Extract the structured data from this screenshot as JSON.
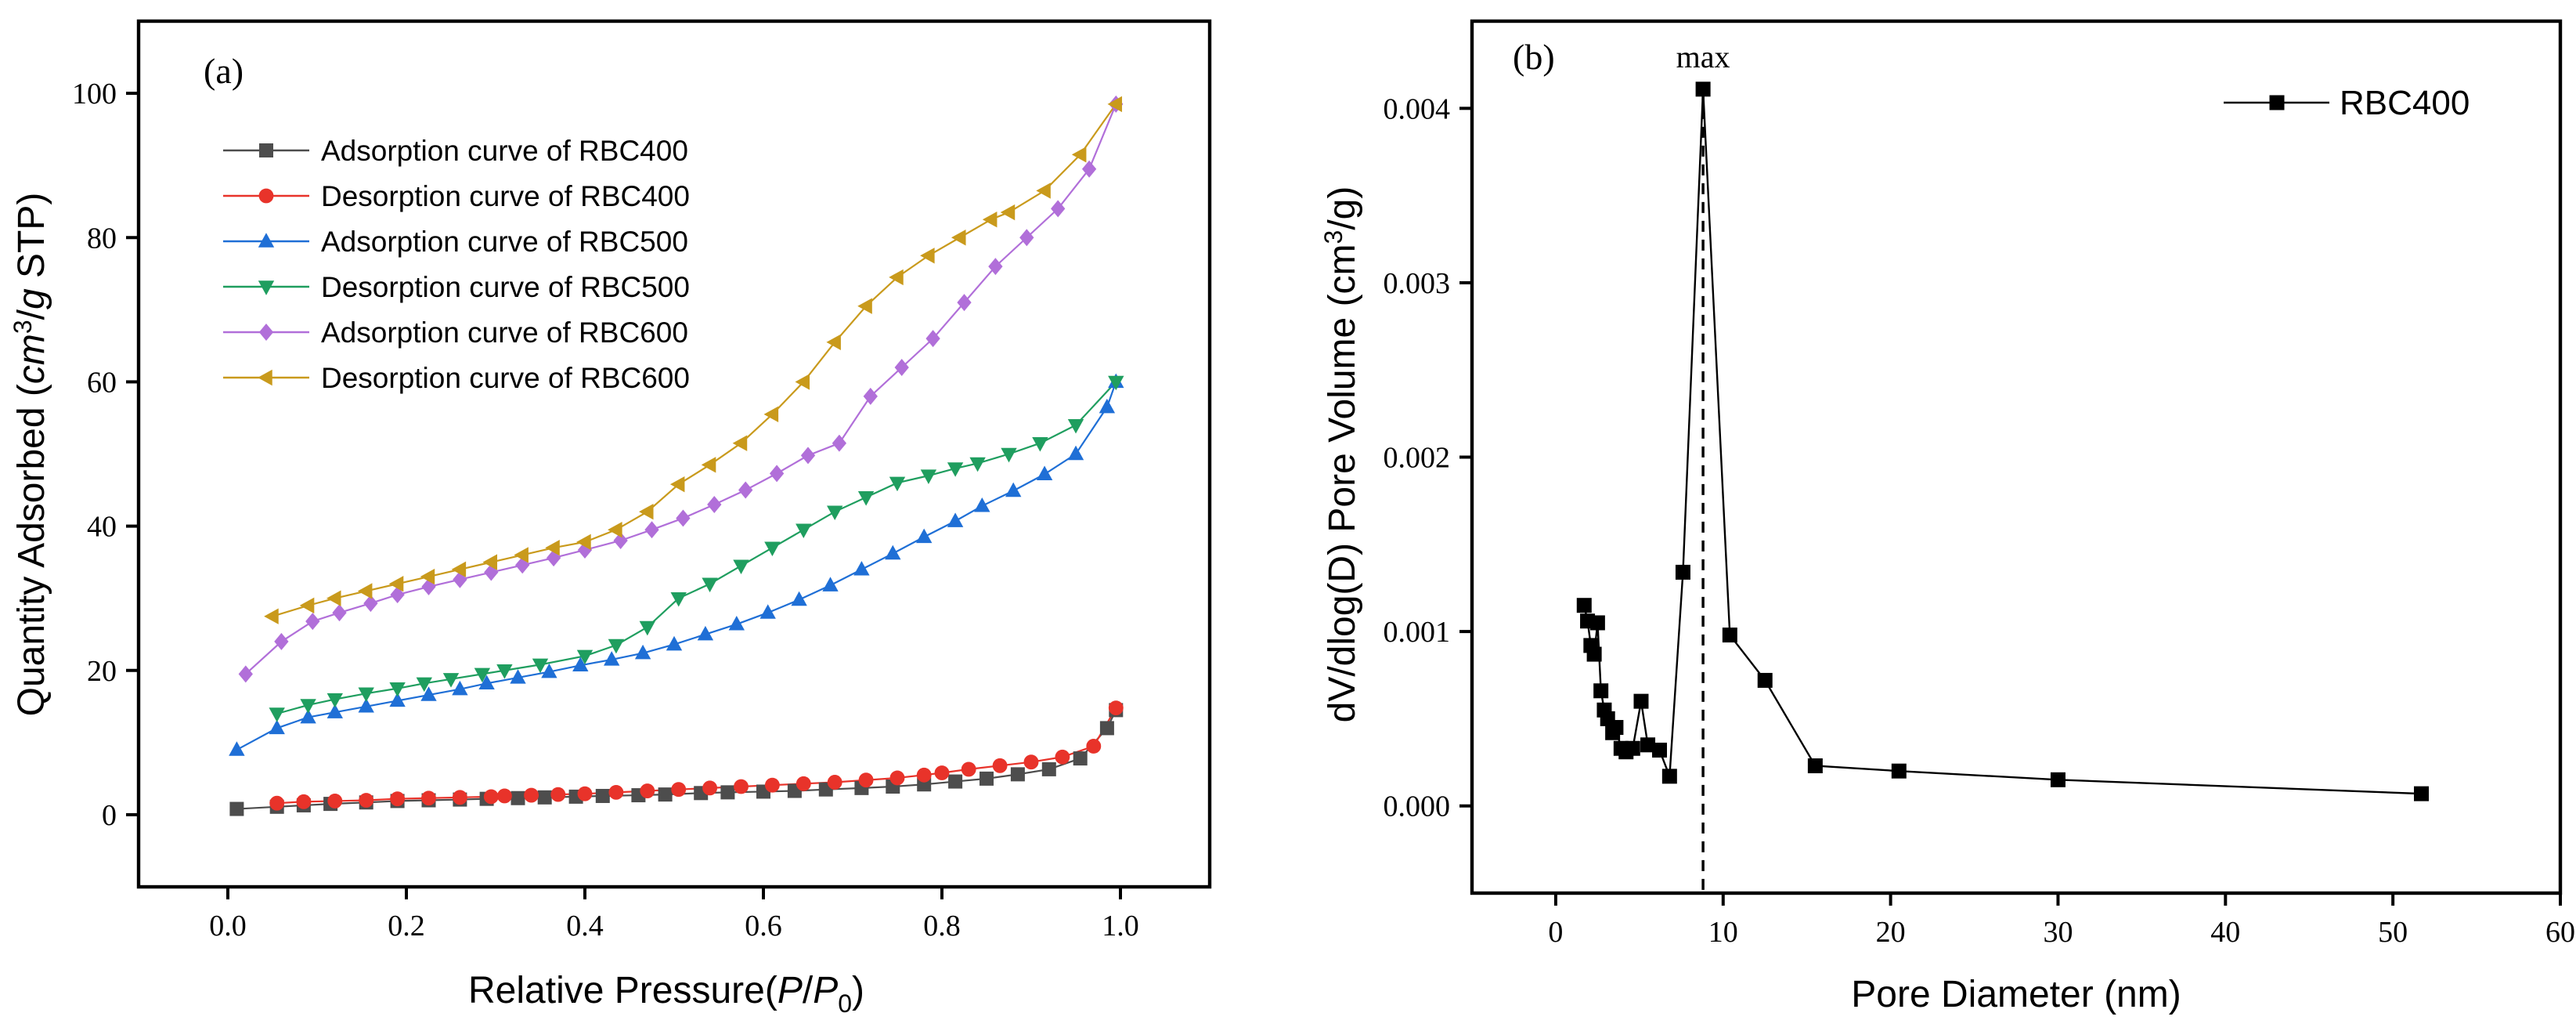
{
  "chart_data": [
    {
      "type": "line",
      "panel_label": "(a)",
      "xlabel_parts": [
        "Relative Pressure(",
        "P",
        "/",
        "P",
        "0",
        ")"
      ],
      "ylabel_parts": [
        "Quantity Adsorbed (",
        "cm",
        "3",
        "/",
        "g",
        " STP)"
      ],
      "xlim": [
        -0.1,
        1.1
      ],
      "ylim": [
        -10,
        110
      ],
      "xticks": [
        0.0,
        0.2,
        0.4,
        0.6,
        0.8,
        1.0
      ],
      "xtick_labels": [
        "0.0",
        "0.2",
        "0.4",
        "0.6",
        "0.8",
        "1.0"
      ],
      "yticks": [
        0,
        20,
        40,
        60,
        80,
        100
      ],
      "ytick_labels": [
        "0",
        "20",
        "40",
        "60",
        "80",
        "100"
      ],
      "legend_position": "upper-left",
      "series": [
        {
          "name": "Adsorption curve of RBC400",
          "color": "#4d4d4d",
          "marker": "square",
          "x": [
            0.01,
            0.055,
            0.085,
            0.115,
            0.155,
            0.19,
            0.225,
            0.26,
            0.29,
            0.325,
            0.355,
            0.39,
            0.42,
            0.46,
            0.49,
            0.53,
            0.56,
            0.6,
            0.635,
            0.67,
            0.71,
            0.745,
            0.78,
            0.815,
            0.85,
            0.885,
            0.92,
            0.955,
            0.985,
            0.995
          ],
          "y": [
            0.8,
            1.1,
            1.3,
            1.5,
            1.7,
            1.9,
            2.0,
            2.1,
            2.2,
            2.3,
            2.4,
            2.5,
            2.6,
            2.7,
            2.8,
            3.0,
            3.1,
            3.2,
            3.3,
            3.5,
            3.7,
            3.9,
            4.2,
            4.6,
            5.0,
            5.6,
            6.3,
            7.8,
            12.0,
            14.5
          ]
        },
        {
          "name": "Desorption curve of RBC400",
          "color": "#e8332a",
          "marker": "circle",
          "x": [
            0.995,
            0.97,
            0.935,
            0.9,
            0.865,
            0.83,
            0.8,
            0.78,
            0.75,
            0.715,
            0.68,
            0.645,
            0.61,
            0.575,
            0.54,
            0.505,
            0.47,
            0.435,
            0.4,
            0.37,
            0.34,
            0.31,
            0.295,
            0.26,
            0.225,
            0.19,
            0.155,
            0.12,
            0.085,
            0.055
          ],
          "y": [
            14.8,
            9.5,
            8.0,
            7.3,
            6.8,
            6.3,
            5.8,
            5.5,
            5.1,
            4.8,
            4.5,
            4.3,
            4.1,
            3.9,
            3.7,
            3.5,
            3.3,
            3.1,
            2.9,
            2.8,
            2.7,
            2.6,
            2.5,
            2.4,
            2.3,
            2.2,
            2.0,
            1.9,
            1.8,
            1.6
          ]
        },
        {
          "name": "Adsorption curve of RBC500",
          "color": "#1f6fd6",
          "marker": "triangle-up",
          "x": [
            0.01,
            0.055,
            0.09,
            0.12,
            0.155,
            0.19,
            0.225,
            0.26,
            0.29,
            0.325,
            0.36,
            0.395,
            0.43,
            0.465,
            0.5,
            0.535,
            0.57,
            0.605,
            0.64,
            0.675,
            0.71,
            0.745,
            0.78,
            0.815,
            0.845,
            0.88,
            0.915,
            0.95,
            0.985,
            0.995
          ],
          "y": [
            9.0,
            12.0,
            13.5,
            14.2,
            15.0,
            15.8,
            16.6,
            17.4,
            18.2,
            19.0,
            19.8,
            20.7,
            21.5,
            22.4,
            23.6,
            25.0,
            26.4,
            28.0,
            29.8,
            31.8,
            34.0,
            36.2,
            38.5,
            40.7,
            42.8,
            44.9,
            47.2,
            50.0,
            56.5,
            60.0
          ]
        },
        {
          "name": "Desorption curve of RBC500",
          "color": "#1f9e5f",
          "marker": "triangle-down",
          "x": [
            0.995,
            0.95,
            0.91,
            0.875,
            0.84,
            0.815,
            0.785,
            0.75,
            0.715,
            0.68,
            0.645,
            0.61,
            0.575,
            0.54,
            0.505,
            0.47,
            0.435,
            0.4,
            0.35,
            0.31,
            0.285,
            0.25,
            0.22,
            0.19,
            0.155,
            0.12,
            0.09,
            0.055
          ],
          "y": [
            60.0,
            54.0,
            51.5,
            50.0,
            48.7,
            48.0,
            47.0,
            46.0,
            44.0,
            42.0,
            39.5,
            37.0,
            34.5,
            32.0,
            30.0,
            26.0,
            23.5,
            22.0,
            20.8,
            20.0,
            19.5,
            18.8,
            18.2,
            17.5,
            16.8,
            16.0,
            15.2,
            14.0
          ]
        },
        {
          "name": "Adsorption curve of RBC600",
          "color": "#b16fd9",
          "marker": "diamond",
          "x": [
            0.02,
            0.06,
            0.095,
            0.125,
            0.16,
            0.19,
            0.225,
            0.26,
            0.295,
            0.33,
            0.365,
            0.4,
            0.44,
            0.475,
            0.51,
            0.545,
            0.58,
            0.615,
            0.65,
            0.685,
            0.72,
            0.755,
            0.79,
            0.825,
            0.86,
            0.895,
            0.93,
            0.965,
            0.995
          ],
          "y": [
            19.5,
            24.0,
            26.8,
            28.0,
            29.3,
            30.5,
            31.6,
            32.6,
            33.6,
            34.6,
            35.6,
            36.7,
            38.0,
            39.5,
            41.1,
            43.0,
            45.0,
            47.3,
            49.8,
            51.5,
            58.0,
            62.0,
            66.0,
            71.0,
            76.0,
            80.0,
            84.0,
            89.5,
            98.5
          ]
        },
        {
          "name": "Desorption curve of RBC600",
          "color": "#c99a1c",
          "marker": "triangle-left",
          "x": [
            0.995,
            0.955,
            0.915,
            0.875,
            0.855,
            0.82,
            0.785,
            0.75,
            0.715,
            0.68,
            0.645,
            0.61,
            0.575,
            0.54,
            0.505,
            0.47,
            0.435,
            0.4,
            0.365,
            0.33,
            0.295,
            0.26,
            0.225,
            0.19,
            0.155,
            0.12,
            0.09,
            0.05
          ],
          "y": [
            98.5,
            91.5,
            86.5,
            83.5,
            82.5,
            80.0,
            77.5,
            74.5,
            70.5,
            65.5,
            60.0,
            55.5,
            51.5,
            48.5,
            45.8,
            42.0,
            39.5,
            37.8,
            37.0,
            36.0,
            35.0,
            34.0,
            33.0,
            32.0,
            31.0,
            30.0,
            29.0,
            27.5
          ]
        }
      ]
    },
    {
      "type": "line",
      "panel_label": "(b)",
      "xlabel": "Pore Diameter (nm)",
      "ylabel_parts": [
        "dV/dlog(D) Pore Volume (cm",
        "3",
        "/g)"
      ],
      "xlim": [
        -5,
        60
      ],
      "ylim": [
        -0.0005,
        0.0045
      ],
      "xticks": [
        0,
        10,
        20,
        30,
        40,
        50,
        60
      ],
      "xtick_labels": [
        "0",
        "10",
        "20",
        "30",
        "40",
        "50",
        "60"
      ],
      "yticks": [
        0.0,
        0.001,
        0.002,
        0.003,
        0.004
      ],
      "ytick_labels": [
        "0.000",
        "0.001",
        "0.002",
        "0.003",
        "0.004"
      ],
      "legend_position": "top-right",
      "annotation": {
        "text": "max",
        "x": 8.8
      },
      "series": [
        {
          "name": "RBC400",
          "color": "#000000",
          "marker": "square",
          "x": [
            1.7,
            1.9,
            2.1,
            2.3,
            2.5,
            2.7,
            2.9,
            3.1,
            3.4,
            3.6,
            3.9,
            4.2,
            4.6,
            5.1,
            5.5,
            6.2,
            6.8,
            7.6,
            8.8,
            10.4,
            12.5,
            15.5,
            20.5,
            30.0,
            51.7
          ],
          "y": [
            0.00115,
            0.00106,
            0.00092,
            0.00087,
            0.00105,
            0.00066,
            0.00055,
            0.0005,
            0.00042,
            0.00045,
            0.00033,
            0.00031,
            0.00033,
            0.0006,
            0.00035,
            0.00032,
            0.00017,
            0.00134,
            0.00411,
            0.00098,
            0.00072,
            0.00023,
            0.0002,
            0.00015,
            7e-05
          ]
        }
      ]
    }
  ]
}
